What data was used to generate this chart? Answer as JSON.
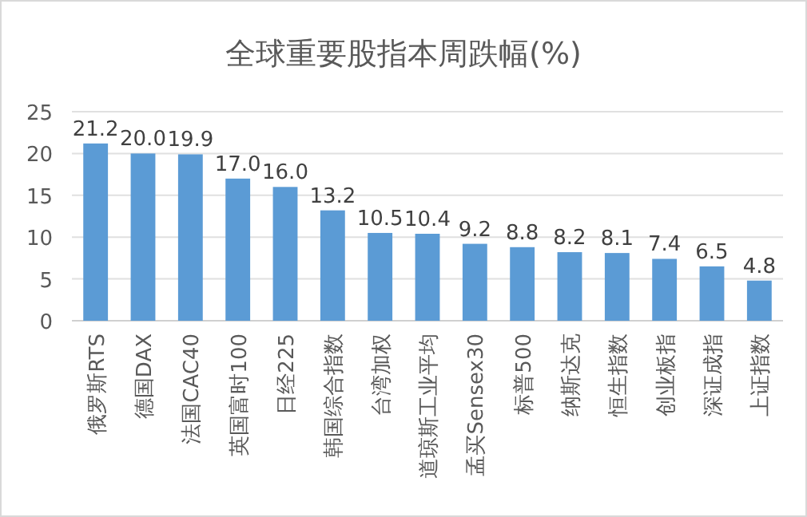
{
  "chart_data": {
    "type": "bar",
    "title": "全球重要股指本周跌幅(%)",
    "categories": [
      "俄罗斯RTS",
      "德国DAX",
      "法国CAC40",
      "英国富时100",
      "日经225",
      "韩国综合指数",
      "台湾加权",
      "道琼斯工业平均",
      "孟买Sensex30",
      "标普500",
      "纳斯达克",
      "恒生指数",
      "创业板指",
      "深证成指",
      "上证指数"
    ],
    "values": [
      21.2,
      20.0,
      19.9,
      17.0,
      16.0,
      13.2,
      10.5,
      10.4,
      9.2,
      8.8,
      8.2,
      8.1,
      7.4,
      6.5,
      4.8
    ],
    "value_labels": [
      "21.2",
      "20.0",
      "19.9",
      "17.0",
      "16.0",
      "13.2",
      "10.5",
      "10.4",
      "9.2",
      "8.8",
      "8.2",
      "8.1",
      "7.4",
      "6.5",
      "4.8"
    ],
    "color": "#5b9bd5",
    "ylim": [
      0,
      25
    ],
    "yticks": [
      0,
      5,
      10,
      15,
      20,
      25
    ],
    "grid": "y"
  }
}
